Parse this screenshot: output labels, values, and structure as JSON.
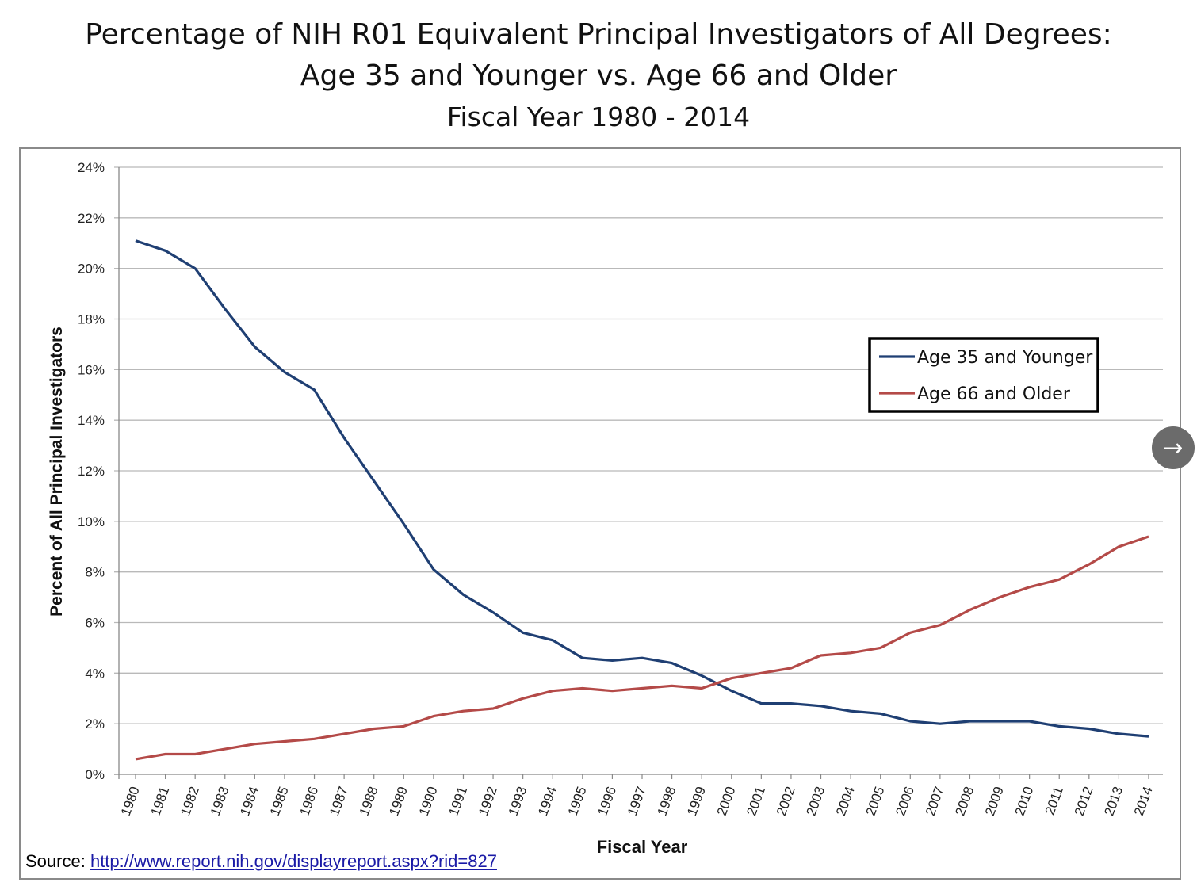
{
  "title_line1": "Percentage of NIH R01 Equivalent Principal Investigators of All Degrees:",
  "title_line2": "Age 35 and Younger vs. Age 66 and Older",
  "subtitle": "Fiscal Year 1980 - 2014",
  "source_label": "Source:",
  "source_link": "http://www.report.nih.gov/displayreport.aspx?rid=827",
  "nav_icon": "arrow-right-icon",
  "chart_data": {
    "type": "line",
    "xlabel": "Fiscal Year",
    "ylabel": "Percent of All Principal Investigators",
    "ylim": [
      0,
      24
    ],
    "yticks": [
      "0%",
      "2%",
      "4%",
      "6%",
      "8%",
      "10%",
      "12%",
      "14%",
      "16%",
      "18%",
      "20%",
      "22%",
      "24%"
    ],
    "grid": true,
    "legend_position": "right",
    "x": [
      "1980",
      "1981",
      "1982",
      "1983",
      "1984",
      "1985",
      "1986",
      "1987",
      "1988",
      "1989",
      "1990",
      "1991",
      "1992",
      "1993",
      "1994",
      "1995",
      "1996",
      "1997",
      "1998",
      "1999",
      "2000",
      "2001",
      "2002",
      "2003",
      "2004",
      "2005",
      "2006",
      "2007",
      "2008",
      "2009",
      "2010",
      "2011",
      "2012",
      "2013",
      "2014"
    ],
    "series": [
      {
        "name": "Age 35 and Younger",
        "color": "#1f3f73",
        "values": [
          21.1,
          20.7,
          20.0,
          18.4,
          16.9,
          15.9,
          15.2,
          13.3,
          11.6,
          9.9,
          8.1,
          7.1,
          6.4,
          5.6,
          5.3,
          4.6,
          4.5,
          4.6,
          4.4,
          3.9,
          3.3,
          2.8,
          2.8,
          2.7,
          2.5,
          2.4,
          2.1,
          2.0,
          2.1,
          2.1,
          2.1,
          1.9,
          1.8,
          1.6,
          1.5
        ]
      },
      {
        "name": "Age 66 and Older",
        "color": "#b44a48",
        "values": [
          0.6,
          0.8,
          0.8,
          1.0,
          1.2,
          1.3,
          1.4,
          1.6,
          1.8,
          1.9,
          2.3,
          2.5,
          2.6,
          3.0,
          3.3,
          3.4,
          3.3,
          3.4,
          3.5,
          3.4,
          3.8,
          4.0,
          4.2,
          4.7,
          4.8,
          5.0,
          5.6,
          5.9,
          6.5,
          7.0,
          7.4,
          7.7,
          8.3,
          9.0,
          9.4
        ]
      }
    ]
  }
}
